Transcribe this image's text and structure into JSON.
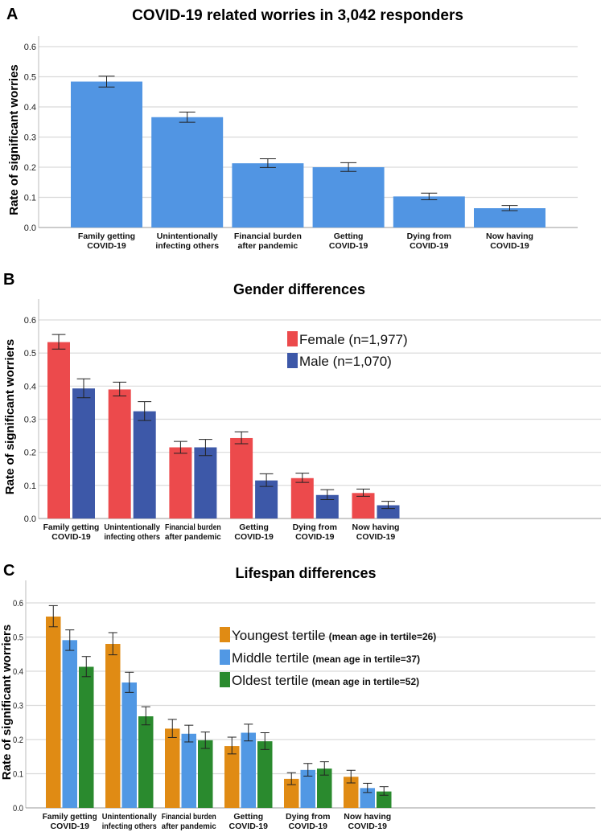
{
  "chart_data": [
    {
      "panel_label": "A",
      "type": "bar",
      "title": "COVID-19 related worries in  3,042 responders",
      "ylabel": "Rate of significant worries",
      "ylim": [
        0,
        0.65
      ],
      "yticks": [
        "0.0",
        "0.1",
        "0.2",
        "0.3",
        "0.4",
        "0.5",
        "0.6"
      ],
      "grid": true,
      "categories": [
        [
          "Family getting",
          "COVID-19"
        ],
        [
          "Unintentionally",
          "infecting others"
        ],
        [
          "Financial burden",
          "after pandemic"
        ],
        [
          "Getting",
          "COVID-19"
        ],
        [
          "Dying from",
          "COVID-19"
        ],
        [
          "Now having",
          "COVID-19"
        ]
      ],
      "series": [
        {
          "color": "#5195e3",
          "values": [
            0.484,
            0.366,
            0.213,
            0.2,
            0.103,
            0.064
          ],
          "error_low": [
            0.466,
            0.349,
            0.199,
            0.186,
            0.092,
            0.056
          ],
          "error_high": [
            0.502,
            0.383,
            0.228,
            0.215,
            0.114,
            0.073
          ]
        }
      ]
    },
    {
      "panel_label": "B",
      "type": "bar",
      "title": "Gender differences",
      "ylabel": "Rate of significant worriers",
      "ylim": [
        0,
        0.65
      ],
      "yticks": [
        "0.0",
        "0.1",
        "0.2",
        "0.3",
        "0.4",
        "0.5",
        "0.6"
      ],
      "grid": true,
      "legend_position": "top-right",
      "categories": [
        [
          "Family getting",
          "COVID-19"
        ],
        [
          "Unintentionally",
          "infecting others"
        ],
        [
          "Financial burden",
          "after pandemic"
        ],
        [
          "Getting",
          "COVID-19"
        ],
        [
          "Dying from",
          "COVID-19"
        ],
        [
          "Now having",
          "COVID-19"
        ]
      ],
      "series": [
        {
          "name": "Female (n=1,977)",
          "color": "#ec4a4c",
          "values": [
            0.533,
            0.39,
            0.215,
            0.243,
            0.122,
            0.077
          ],
          "error_low": [
            0.512,
            0.37,
            0.197,
            0.226,
            0.109,
            0.067
          ],
          "error_high": [
            0.556,
            0.412,
            0.233,
            0.262,
            0.137,
            0.089
          ]
        },
        {
          "name": "Male (n=1,070)",
          "color": "#3d58a8",
          "values": [
            0.393,
            0.324,
            0.215,
            0.115,
            0.071,
            0.04
          ],
          "error_low": [
            0.365,
            0.296,
            0.19,
            0.097,
            0.057,
            0.03
          ],
          "error_high": [
            0.422,
            0.353,
            0.239,
            0.135,
            0.087,
            0.052
          ]
        }
      ]
    },
    {
      "panel_label": "C",
      "type": "bar",
      "title": "Lifespan differences",
      "ylabel": "Rate of significant worriers",
      "ylim": [
        0,
        0.65
      ],
      "yticks": [
        "0.0",
        "0.1",
        "0.2",
        "0.3",
        "0.4",
        "0.5",
        "0.6"
      ],
      "grid": true,
      "legend_position": "top-right",
      "categories": [
        [
          "Family getting",
          "COVID-19"
        ],
        [
          "Unintentionally",
          "infecting others"
        ],
        [
          "Financial burden",
          "after pandemic"
        ],
        [
          "Getting",
          "COVID-19"
        ],
        [
          "Dying from",
          "COVID-19"
        ],
        [
          "Now having",
          "COVID-19"
        ]
      ],
      "series": [
        {
          "name": "Youngest tertile",
          "name_note": "(mean age in tertile=26)",
          "color": "#e08b14",
          "values": [
            0.56,
            0.48,
            0.232,
            0.181,
            0.085,
            0.091
          ],
          "error_low": [
            0.53,
            0.448,
            0.206,
            0.158,
            0.068,
            0.073
          ],
          "error_high": [
            0.592,
            0.513,
            0.259,
            0.207,
            0.103,
            0.11
          ]
        },
        {
          "name": "Middle tertile",
          "name_note": "(mean age in tertile=37)",
          "color": "#5198e4",
          "values": [
            0.491,
            0.367,
            0.217,
            0.22,
            0.111,
            0.058
          ],
          "error_low": [
            0.461,
            0.338,
            0.193,
            0.196,
            0.093,
            0.045
          ],
          "error_high": [
            0.521,
            0.397,
            0.242,
            0.245,
            0.13,
            0.072
          ]
        },
        {
          "name": "Oldest tertile",
          "name_note": "(mean age in tertile=52)",
          "color": "#2a8a2e",
          "values": [
            0.413,
            0.268,
            0.198,
            0.195,
            0.115,
            0.048
          ],
          "error_low": [
            0.384,
            0.243,
            0.174,
            0.171,
            0.096,
            0.037
          ],
          "error_high": [
            0.443,
            0.296,
            0.222,
            0.22,
            0.135,
            0.062
          ]
        }
      ]
    }
  ]
}
